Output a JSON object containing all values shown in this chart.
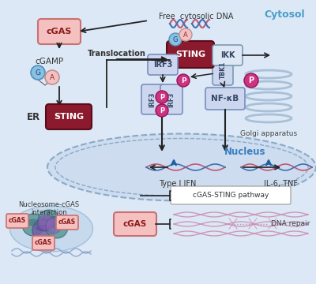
{
  "bg_color": "#e8eff8",
  "cell_bg": "#dce8f5",
  "cytosol_label": "Cytosol",
  "cytosol_color": "#4a9eca",
  "golgi_label": "Golgi apparatus",
  "nucleus_label": "Nucleus",
  "nucleus_color": "#3a7fc1",
  "sting_color": "#8b1a2e",
  "cgas_fill": "#f5c0c0",
  "cgas_border": "#c97070",
  "nfkb_fill": "#ccd6ee",
  "nfkb_border": "#7a8fc0",
  "irf3_fill": "#ccd6ee",
  "irf3_border": "#7a8fc0",
  "ikk_fill": "#dde8f4",
  "ikk_border": "#7a9ab0",
  "tbk1_fill": "#ccd6ee",
  "tbk1_border": "#7a9ab0",
  "p_color": "#cc3380",
  "g_color": "#8ac0e0",
  "a_color": "#f5c0c0",
  "arrow_color": "#222222",
  "blue_arrow": "#2060a0",
  "dna_pink": "#c05878",
  "dna_blue": "#4070b0",
  "type1ifn_label": "Type I IFN",
  "iltnf_label": "IL-6, TNF",
  "cgassting_label": "cGAS-STING pathway",
  "dnarepair_label": "DNA repair",
  "translocation_label": "Translocation",
  "nucleosome_label": "Nucleosome-cGAS\ninteraction",
  "free_dna_label": "Free  cytosolic DNA",
  "er_label": "ER",
  "cgamp_label": "cGAMP"
}
